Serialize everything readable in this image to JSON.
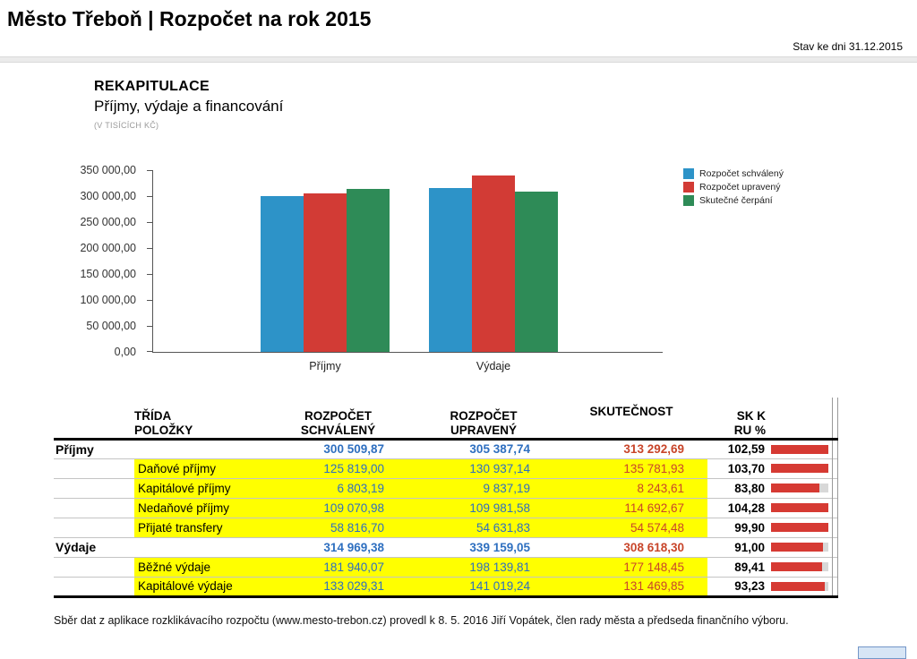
{
  "page": {
    "title": "Město Třeboň | Rozpočet na rok 2015",
    "status_date": "Stav ke dni 31.12.2015",
    "footer": "Sběr dat z aplikace rozklikávacího rozpočtu (www.mesto-trebon.cz) provedl k 8. 5. 2016 Jiří Vopátek, člen rady města a předseda finančního výboru."
  },
  "section": {
    "heading": "REKAPITULACE",
    "subheading": "Příjmy, výdaje a financování",
    "units_note": "(V TISÍCÍCH KČ)"
  },
  "chart_data": {
    "type": "bar",
    "title": "Příjmy, výdaje a financování (v tisících Kč)",
    "categories": [
      "Příjmy",
      "Výdaje"
    ],
    "series": [
      {
        "name": "Rozpočet schválený",
        "color": "#2d93c8",
        "values": [
          300509.87,
          314969.38
        ]
      },
      {
        "name": "Rozpočet upravený",
        "color": "#d23b35",
        "values": [
          305387.74,
          339159.05
        ]
      },
      {
        "name": "Skutečné čerpání",
        "color": "#2e8b57",
        "values": [
          313292.69,
          308618.3
        ]
      }
    ],
    "xlabel": "",
    "ylabel": "",
    "ylim": [
      0,
      350000
    ],
    "ytick_step": 50000,
    "ytick_labels": [
      "350 000,00",
      "300 000,00",
      "250 000,00",
      "200 000,00",
      "150 000,00",
      "100 000,00",
      "50 000,00",
      "0,00"
    ],
    "grid": false,
    "legend_position": "right"
  },
  "table": {
    "highlight_color": "#ffff00",
    "num_blue": "#2e6fc0",
    "num_red": "#c8452a",
    "bar_color": "#d63a33",
    "headers": [
      "TŘÍDA\nPOLOŽKY",
      "ROZPOČET\nSCHVÁLENÝ",
      "ROZPOČET\nUPRAVENÝ",
      "SKUTEČNOST",
      "SK K\nRU %"
    ],
    "rows": [
      {
        "kind": "summary",
        "group": "Příjmy",
        "label": "",
        "approved": "300 509,87",
        "adjusted": "305 387,74",
        "actual": "313 292,69",
        "pct": "102,59",
        "pct_value": 102.59
      },
      {
        "kind": "detail",
        "group": "",
        "label": "Daňové příjmy",
        "approved": "125 819,00",
        "adjusted": "130 937,14",
        "actual": "135 781,93",
        "pct": "103,70",
        "pct_value": 103.7
      },
      {
        "kind": "detail",
        "group": "",
        "label": "Kapitálové příjmy",
        "approved": "6 803,19",
        "adjusted": "9 837,19",
        "actual": "8 243,61",
        "pct": "83,80",
        "pct_value": 83.8
      },
      {
        "kind": "detail",
        "group": "",
        "label": "Nedaňové příjmy",
        "approved": "109 070,98",
        "adjusted": "109 981,58",
        "actual": "114 692,67",
        "pct": "104,28",
        "pct_value": 104.28
      },
      {
        "kind": "detail",
        "group": "",
        "label": "Přijaté transfery",
        "approved": "58 816,70",
        "adjusted": "54 631,83",
        "actual": "54 574,48",
        "pct": "99,90",
        "pct_value": 99.9
      },
      {
        "kind": "summary",
        "group": "Výdaje",
        "label": "",
        "approved": "314 969,38",
        "adjusted": "339 159,05",
        "actual": "308 618,30",
        "pct": "91,00",
        "pct_value": 91.0
      },
      {
        "kind": "detail",
        "group": "",
        "label": "Běžné výdaje",
        "approved": "181 940,07",
        "adjusted": "198 139,81",
        "actual": "177 148,45",
        "pct": "89,41",
        "pct_value": 89.41
      },
      {
        "kind": "detail",
        "group": "",
        "label": "Kapitálové výdaje",
        "approved": "133 029,31",
        "adjusted": "141 019,24",
        "actual": "131 469,85",
        "pct": "93,23",
        "pct_value": 93.23
      }
    ]
  }
}
